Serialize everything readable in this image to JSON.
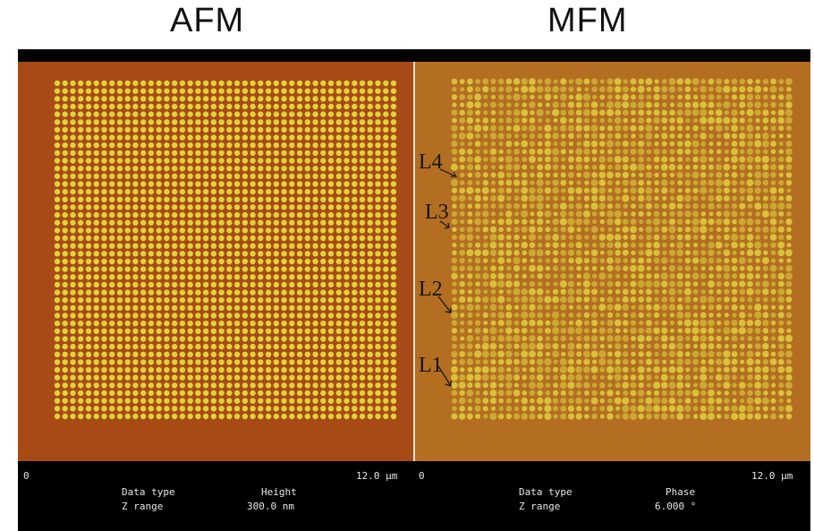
{
  "titles": {
    "left": "AFM",
    "right": "MFM"
  },
  "afm": {
    "scale_start": "0",
    "scale_end": "12.0 µm",
    "data_type_label": "Data type",
    "data_type_value": "Height",
    "z_range_label": "Z range",
    "z_range_value": "300.0 nm"
  },
  "mfm": {
    "scale_start": "0",
    "scale_end": "12.0 µm",
    "data_type_label": "Data type",
    "data_type_value": "Phase",
    "z_range_label": "Z range",
    "z_range_value": "6.000 °",
    "annotations": [
      "L4",
      "L3",
      "L2",
      "L1"
    ]
  },
  "colors": {
    "afm_background": "#a84a16",
    "afm_dot": "#e0d23a",
    "mfm_background": "#b36e22",
    "mfm_dot": "#d9c23a",
    "bar": "#000000"
  }
}
